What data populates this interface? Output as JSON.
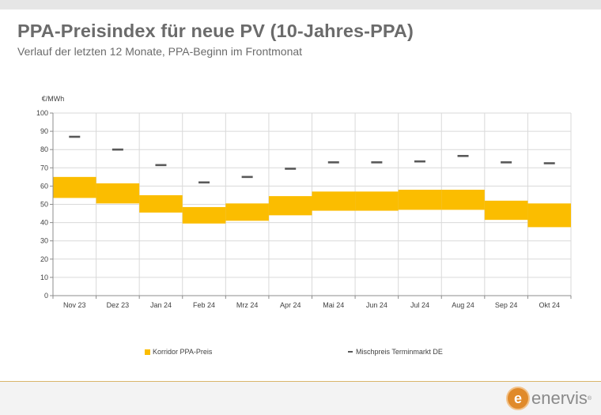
{
  "header": {
    "title": "PPA-Preisindex für neue PV (10-Jahres-PPA)",
    "subtitle": "Verlauf der letzten 12 Monate, PPA-Beginn im Frontmonat"
  },
  "chart_data": {
    "type": "bar",
    "ylabel": "€/MWh",
    "ylim": [
      0,
      100
    ],
    "yticks": [
      0,
      10,
      20,
      30,
      40,
      50,
      60,
      70,
      80,
      90,
      100
    ],
    "grid": true,
    "categories": [
      "Nov 23",
      "Dez 23",
      "Jan 24",
      "Feb 24",
      "Mrz 24",
      "Apr 24",
      "Mai 24",
      "Jun 24",
      "Jul 24",
      "Aug 24",
      "Sep 24",
      "Okt 24"
    ],
    "series": [
      {
        "name": "Korridor PPA-Preis",
        "kind": "range",
        "color": "#fbbd00",
        "low": [
          53.5,
          50.5,
          45.5,
          39.5,
          41,
          44,
          46.5,
          46.5,
          47,
          47,
          41.5,
          37.5
        ],
        "high": [
          65,
          61.5,
          55,
          48.5,
          50.5,
          54.5,
          57,
          57,
          58,
          58,
          52,
          50.5
        ]
      },
      {
        "name": "Mischpreis Terminmarkt DE",
        "kind": "marker",
        "color": "#595959",
        "values": [
          87,
          80,
          71.5,
          62,
          65,
          69.5,
          73,
          73,
          73.5,
          76.5,
          73,
          72.5
        ]
      }
    ],
    "legend_position": "bottom"
  },
  "logo": {
    "brand": "enervis",
    "mark": "e",
    "reg": "®"
  }
}
